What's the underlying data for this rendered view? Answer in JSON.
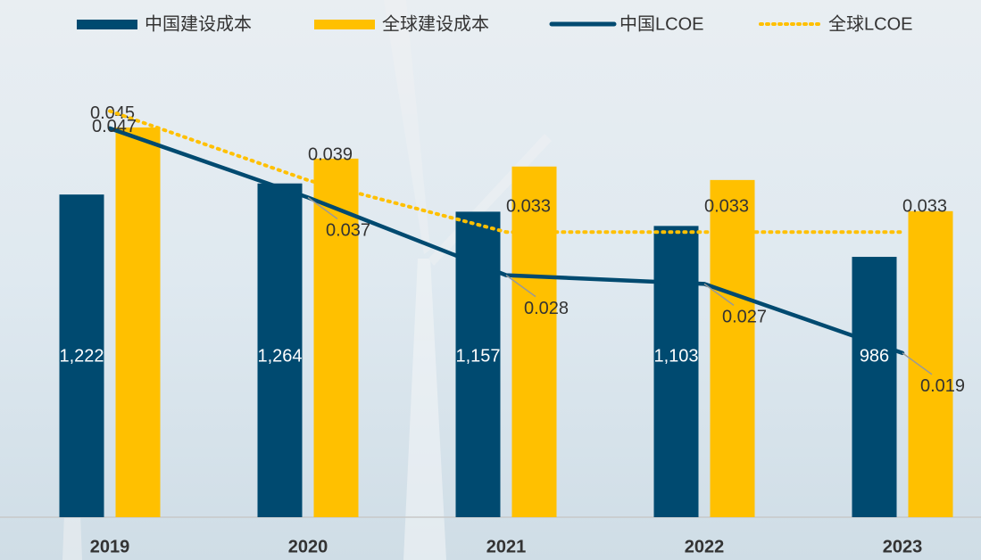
{
  "chart_data": {
    "type": "bar-line",
    "categories": [
      "2019",
      "2020",
      "2021",
      "2022",
      "2023"
    ],
    "ylim": [
      0,
      1800
    ],
    "y2lim": [
      0,
      0.055
    ],
    "series": [
      {
        "name": "中国建设成本",
        "type": "bar",
        "color": "#004a70",
        "values": [
          1222,
          1264,
          1157,
          1103,
          986
        ],
        "value_labels": [
          "1,222",
          "1,264",
          "1,157",
          "1,103",
          "986"
        ]
      },
      {
        "name": "全球建设成本",
        "type": "bar",
        "color": "#ffc000",
        "values": [
          1476,
          1358,
          1328,
          1277,
          1159
        ]
      },
      {
        "name": "中国LCOE",
        "type": "line",
        "axis": "y2",
        "color": "#004a70",
        "values": [
          0.045,
          0.037,
          0.028,
          0.027,
          0.019
        ]
      },
      {
        "name": "全球LCOE",
        "type": "line",
        "axis": "y2",
        "dash": "dotted",
        "color": "#ffc000",
        "values": [
          0.047,
          0.039,
          0.033,
          0.033,
          0.033
        ]
      }
    ]
  }
}
